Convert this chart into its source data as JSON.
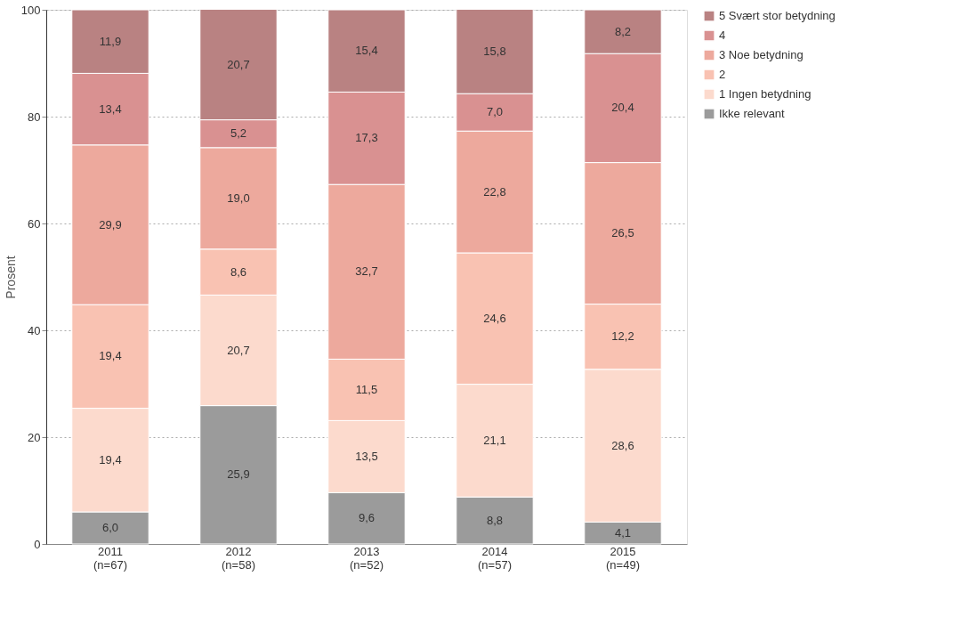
{
  "chart_data": {
    "type": "bar",
    "stacked": true,
    "ylabel": "Prosent",
    "ylim": [
      0,
      100
    ],
    "yticks": [
      0,
      20,
      40,
      60,
      80,
      100
    ],
    "grid": "y",
    "legend": "right",
    "categories": [
      "2011\n(n=67)",
      "2012\n(n=58)",
      "2013\n(n=52)",
      "2014\n(n=57)",
      "2015\n(n=49)"
    ],
    "series": [
      {
        "name": "Ikke relevant",
        "color": "#9b9b9b",
        "values": [
          6.0,
          25.9,
          9.6,
          8.8,
          4.1
        ],
        "value_labels": [
          "6,0",
          "25,9",
          "9,6",
          "8,8",
          "4,1"
        ]
      },
      {
        "name": "1 Ingen betydning",
        "color": "#fcdacd",
        "values": [
          19.4,
          20.7,
          13.5,
          21.1,
          28.6
        ],
        "value_labels": [
          "19,4",
          "20,7",
          "13,5",
          "21,1",
          "28,6"
        ]
      },
      {
        "name": "2",
        "color": "#f9c2b2",
        "values": [
          19.4,
          8.6,
          11.5,
          24.6,
          12.2
        ],
        "value_labels": [
          "19,4",
          "8,6",
          "11,5",
          "24,6",
          "12,2"
        ]
      },
      {
        "name": "3 Noe betydning",
        "color": "#eda99d",
        "values": [
          29.9,
          19.0,
          32.7,
          22.8,
          26.5
        ],
        "value_labels": [
          "29,9",
          "19,0",
          "32,7",
          "22,8",
          "26,5"
        ]
      },
      {
        "name": "4",
        "color": "#d99191",
        "values": [
          13.4,
          5.2,
          17.3,
          7.0,
          20.4
        ],
        "value_labels": [
          "13,4",
          "5,2",
          "17,3",
          "7,0",
          "20,4"
        ]
      },
      {
        "name": "5 Svært stor betydning",
        "color": "#b98282",
        "values": [
          11.9,
          20.7,
          15.4,
          15.8,
          8.2
        ],
        "value_labels": [
          "11,9",
          "20,7",
          "15,4",
          "15,8",
          "8,2"
        ]
      }
    ]
  }
}
